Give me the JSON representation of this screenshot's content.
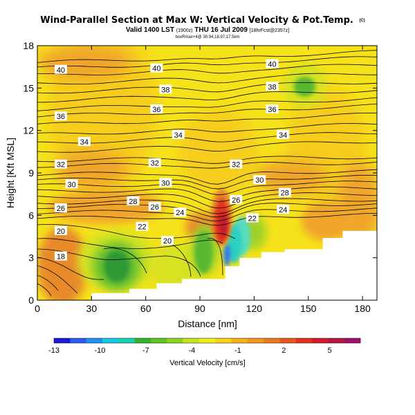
{
  "chart_data": {
    "type": "heatmap",
    "title": "Wind-Parallel Section at Max W: Vertical Velocity & Pot.Temp.",
    "title_mark": "(C)",
    "subtitle_main": "Valid 1400 LST",
    "subtitle_utc": "(1900z)",
    "subtitle_date": "THU 16 Jul 2009",
    "subtitle_run": "[18hrFcst@2357z]",
    "small_note": "boxRmax+4@ 30.94,18.97,17.5km",
    "xlabel": "Distance [nm]",
    "ylabel": "Height [Kft MSL]",
    "xlim": [
      0,
      188
    ],
    "ylim": [
      0,
      18
    ],
    "x_ticks": [
      0,
      30,
      60,
      90,
      120,
      150,
      180
    ],
    "y_ticks": [
      0,
      3,
      6,
      9,
      12,
      15,
      18
    ],
    "grid": false,
    "colorbar_label": "Vertical Velocity [cm/s]",
    "colorbar_ticks": [
      -13,
      -10,
      -7,
      -4,
      -1,
      2,
      5
    ],
    "colorbar_range": [
      -13,
      7
    ],
    "colorbar_colors": [
      "#1a1ad6",
      "#2a5cf0",
      "#1f92f2",
      "#16c8e8",
      "#19d0b6",
      "#2fb42a",
      "#5cc61e",
      "#8ed420",
      "#c8e41e",
      "#f2ec1c",
      "#f6d21a",
      "#f6b21a",
      "#f2961c",
      "#ec7a1c",
      "#e8561c",
      "#e0321e",
      "#d01c28",
      "#b81444",
      "#a0106e"
    ],
    "field_colors": {
      "ambient": "#f6e21a",
      "light_orange": "#f6cd1e",
      "orange": "#f0a52a",
      "dark_orange": "#e88a2c",
      "red": "#e0321e",
      "dark_red": "#c01430",
      "green_yellow": "#d6e224",
      "light_green": "#9ed22a",
      "green": "#58b830",
      "dark_green": "#2e9a34",
      "cyan": "#2ad0c0",
      "cyan_light": "#58dcc0",
      "blue": "#2a7cf0",
      "terrain": "#ffffff"
    },
    "terrain_profile": [
      [
        0,
        0
      ],
      [
        30,
        0
      ],
      [
        30,
        0.5
      ],
      [
        51,
        0.5
      ],
      [
        51,
        0.8
      ],
      [
        66,
        0.8
      ],
      [
        66,
        1.2
      ],
      [
        80,
        1.2
      ],
      [
        80,
        1.5
      ],
      [
        104,
        1.5
      ],
      [
        104,
        2.4
      ],
      [
        112,
        2.4
      ],
      [
        112,
        3.0
      ],
      [
        124,
        3.0
      ],
      [
        124,
        3.4
      ],
      [
        137,
        3.4
      ],
      [
        137,
        3.6
      ],
      [
        158,
        3.6
      ],
      [
        158,
        4.4
      ],
      [
        169,
        4.4
      ],
      [
        169,
        4.9
      ],
      [
        188,
        4.9
      ]
    ],
    "theta_contour_labels": [
      {
        "label": "40",
        "x": 13,
        "y": 16.3
      },
      {
        "label": "40",
        "x": 66,
        "y": 16.4
      },
      {
        "label": "40",
        "x": 130,
        "y": 16.7
      },
      {
        "label": "38",
        "x": 71,
        "y": 14.9
      },
      {
        "label": "38",
        "x": 130,
        "y": 15.1
      },
      {
        "label": "36",
        "x": 13,
        "y": 13.0
      },
      {
        "label": "36",
        "x": 66,
        "y": 13.5
      },
      {
        "label": "36",
        "x": 130,
        "y": 13.5
      },
      {
        "label": "34",
        "x": 26,
        "y": 11.2
      },
      {
        "label": "34",
        "x": 78,
        "y": 11.7
      },
      {
        "label": "34",
        "x": 136,
        "y": 11.7
      },
      {
        "label": "32",
        "x": 13,
        "y": 9.6
      },
      {
        "label": "32",
        "x": 65,
        "y": 9.7
      },
      {
        "label": "32",
        "x": 110,
        "y": 9.6
      },
      {
        "label": "30",
        "x": 19,
        "y": 8.2
      },
      {
        "label": "30",
        "x": 71,
        "y": 8.3
      },
      {
        "label": "30",
        "x": 123,
        "y": 8.5
      },
      {
        "label": "28",
        "x": 53,
        "y": 7.0
      },
      {
        "label": "28",
        "x": 137,
        "y": 7.6
      },
      {
        "label": "26",
        "x": 13,
        "y": 6.5
      },
      {
        "label": "26",
        "x": 65,
        "y": 6.6
      },
      {
        "label": "26",
        "x": 110,
        "y": 7.1
      },
      {
        "label": "24",
        "x": 79,
        "y": 6.2
      },
      {
        "label": "24",
        "x": 136,
        "y": 6.4
      },
      {
        "label": "22",
        "x": 58,
        "y": 5.2
      },
      {
        "label": "22",
        "x": 119,
        "y": 5.8
      },
      {
        "label": "20",
        "x": 13,
        "y": 4.9
      },
      {
        "label": "20",
        "x": 72,
        "y": 4.2
      },
      {
        "label": "18",
        "x": 13,
        "y": 3.1
      }
    ]
  }
}
